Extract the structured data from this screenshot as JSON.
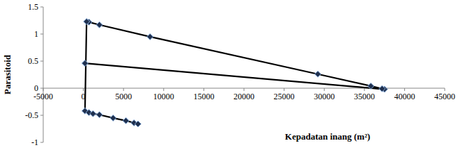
{
  "chart_data": {
    "type": "scatter",
    "x_label": "Kepadatan inang (m²)",
    "y_label": "Parasitoid",
    "x": [
      200,
      37500,
      37200,
      35800,
      29200,
      8300,
      2000,
      700,
      400,
      200,
      700,
      1200,
      2000,
      3700,
      5300,
      6300,
      6800
    ],
    "values": [
      0.46,
      -0.02,
      -0.01,
      0.04,
      0.26,
      0.95,
      1.17,
      1.22,
      1.23,
      -0.42,
      -0.45,
      -0.47,
      -0.49,
      -0.55,
      -0.6,
      -0.64,
      -0.66
    ],
    "color": "#000000",
    "marker": "diamond",
    "line_style": "solid",
    "xlim": [
      -5000,
      45000
    ],
    "xticks": [
      -5000,
      0,
      5000,
      10000,
      15000,
      20000,
      25000,
      30000,
      35000,
      40000,
      45000
    ],
    "ylim": [
      -1,
      1.5
    ],
    "yticks": [
      -1,
      -0.5,
      0,
      0.5,
      1,
      1.5
    ],
    "grid": false
  }
}
